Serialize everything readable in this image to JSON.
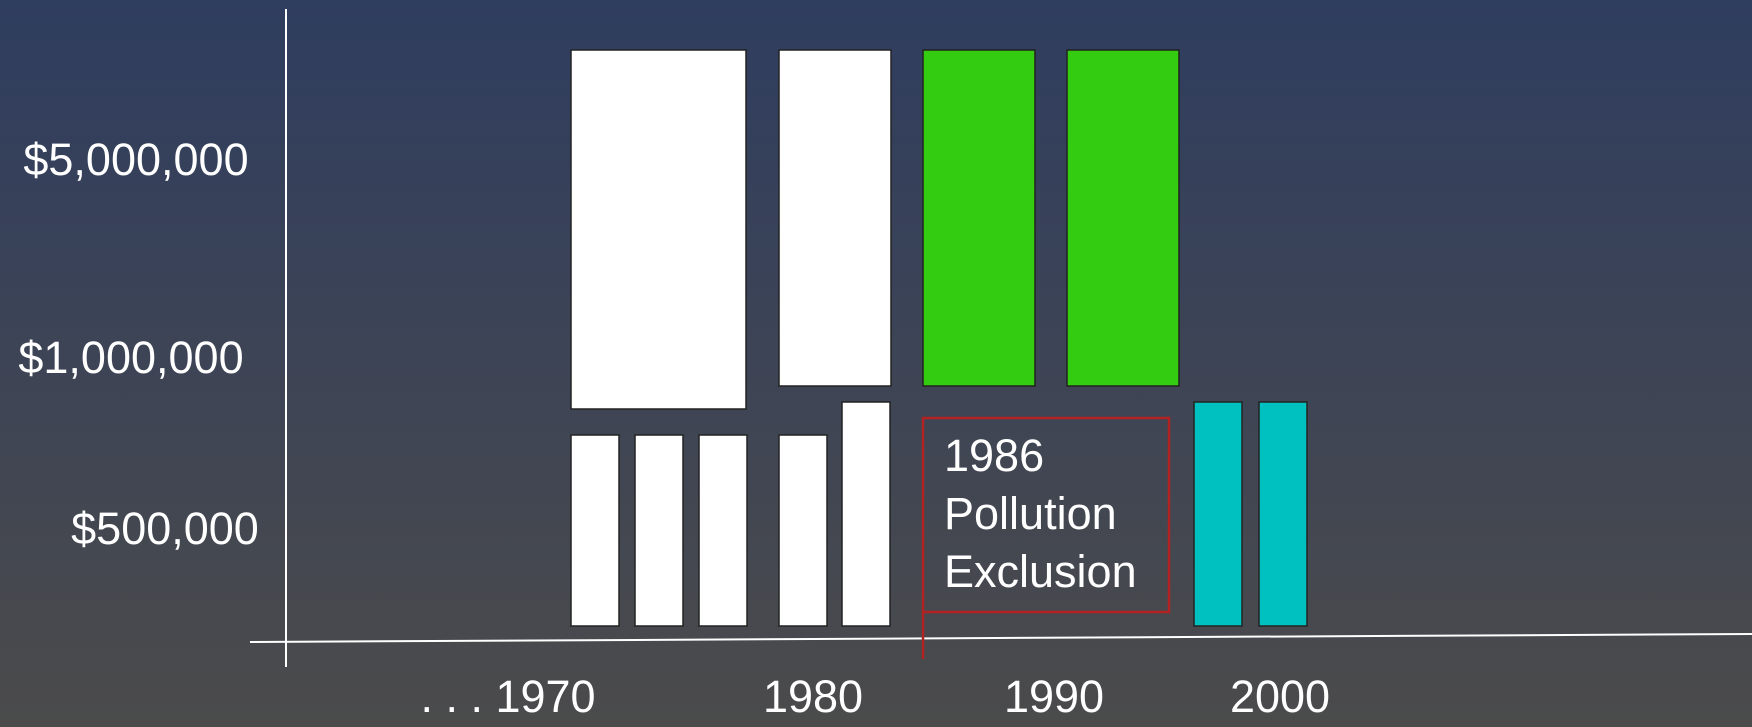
{
  "y_axis_labels": [
    "$5,000,000",
    "$1,000,000",
    "$500,000"
  ],
  "x_axis_labels": [
    ". . . 1970",
    "1980",
    "1990",
    "2000"
  ],
  "annotation": {
    "lines": [
      "1986",
      "Pollution",
      "Exclusion"
    ]
  }
}
